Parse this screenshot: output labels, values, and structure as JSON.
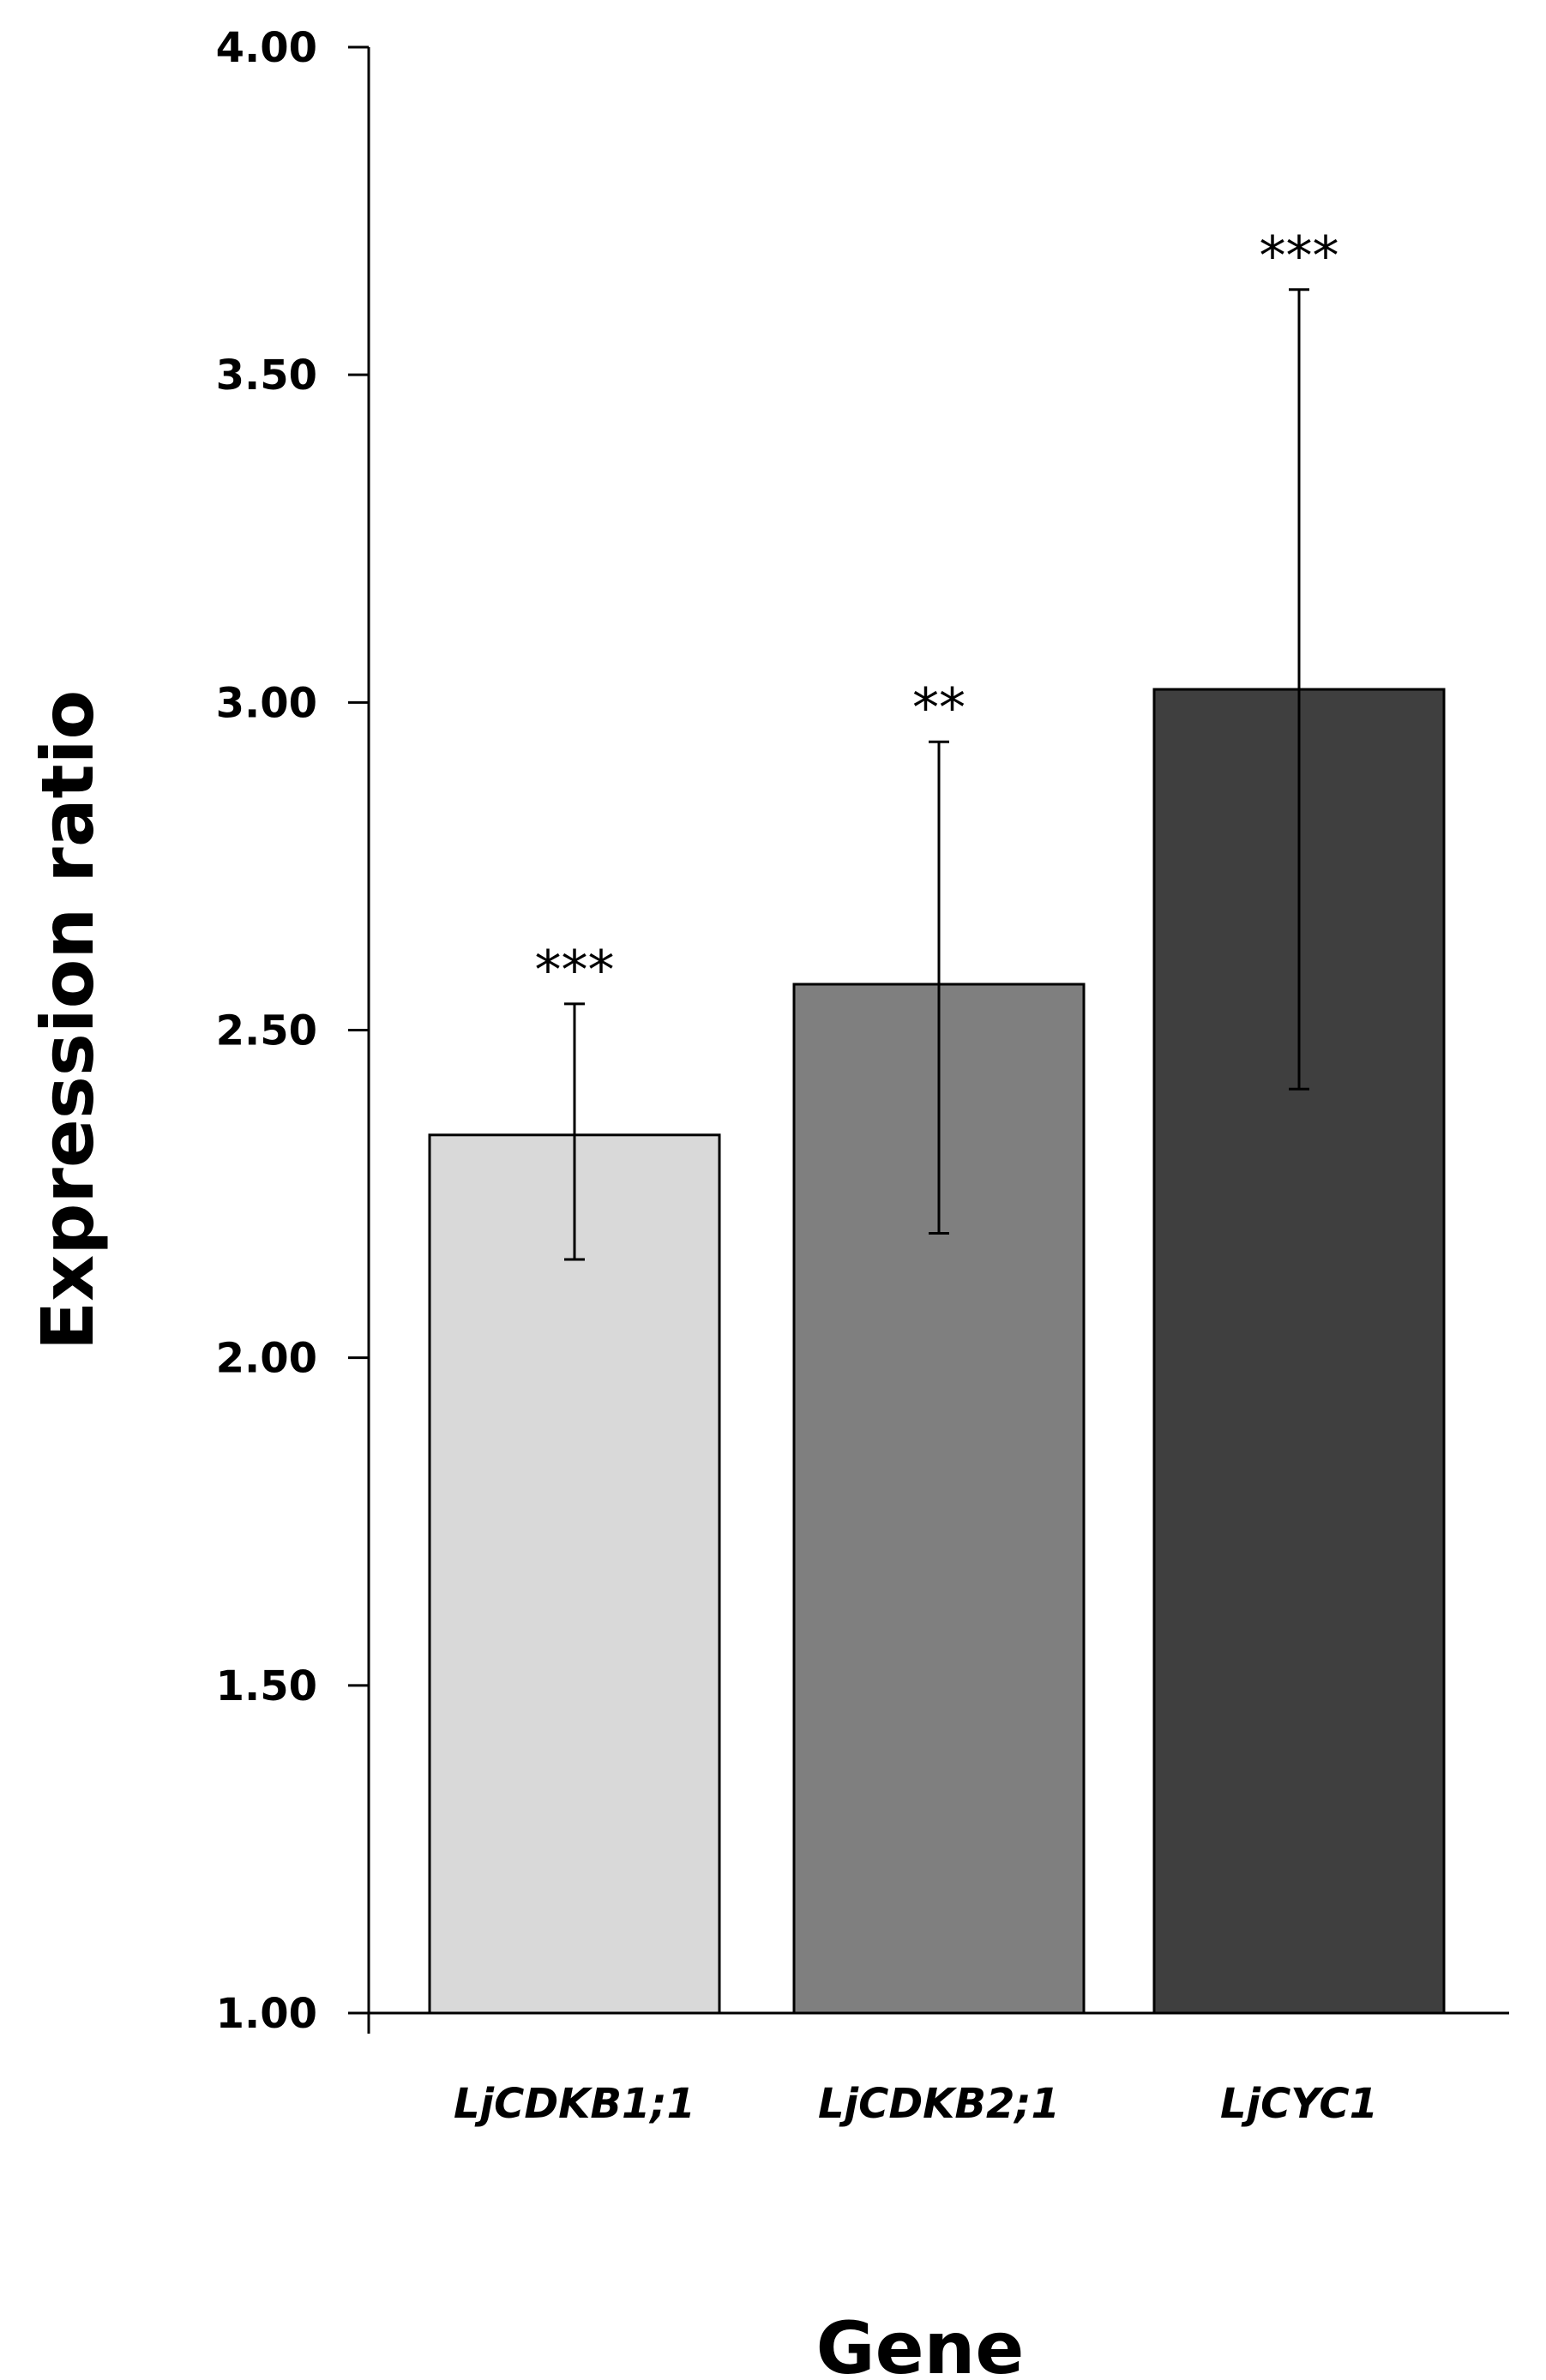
{
  "chart_data": {
    "type": "bar",
    "xlabel": "Gene",
    "ylabel": "Expression ratio",
    "ylim": [
      1.0,
      4.0
    ],
    "yticks": [
      "1.00",
      "1.50",
      "2.00",
      "2.50",
      "3.00",
      "3.50",
      "4.00"
    ],
    "ytick_values": [
      1.0,
      1.5,
      2.0,
      2.5,
      3.0,
      3.5,
      4.0
    ],
    "categories": [
      "LjCDKB1;1",
      "LjCDKB2;1",
      "LjCYC1"
    ],
    "values": [
      2.34,
      2.57,
      3.02
    ],
    "error_low": [
      2.15,
      2.19,
      2.41
    ],
    "error_high": [
      2.54,
      2.94,
      3.63
    ],
    "significance": [
      "***",
      "**",
      "***"
    ],
    "bar_colors": [
      "#d9d9d9",
      "#7f7f7f",
      "#3f3f3f"
    ],
    "grid": false,
    "legend": "none"
  }
}
